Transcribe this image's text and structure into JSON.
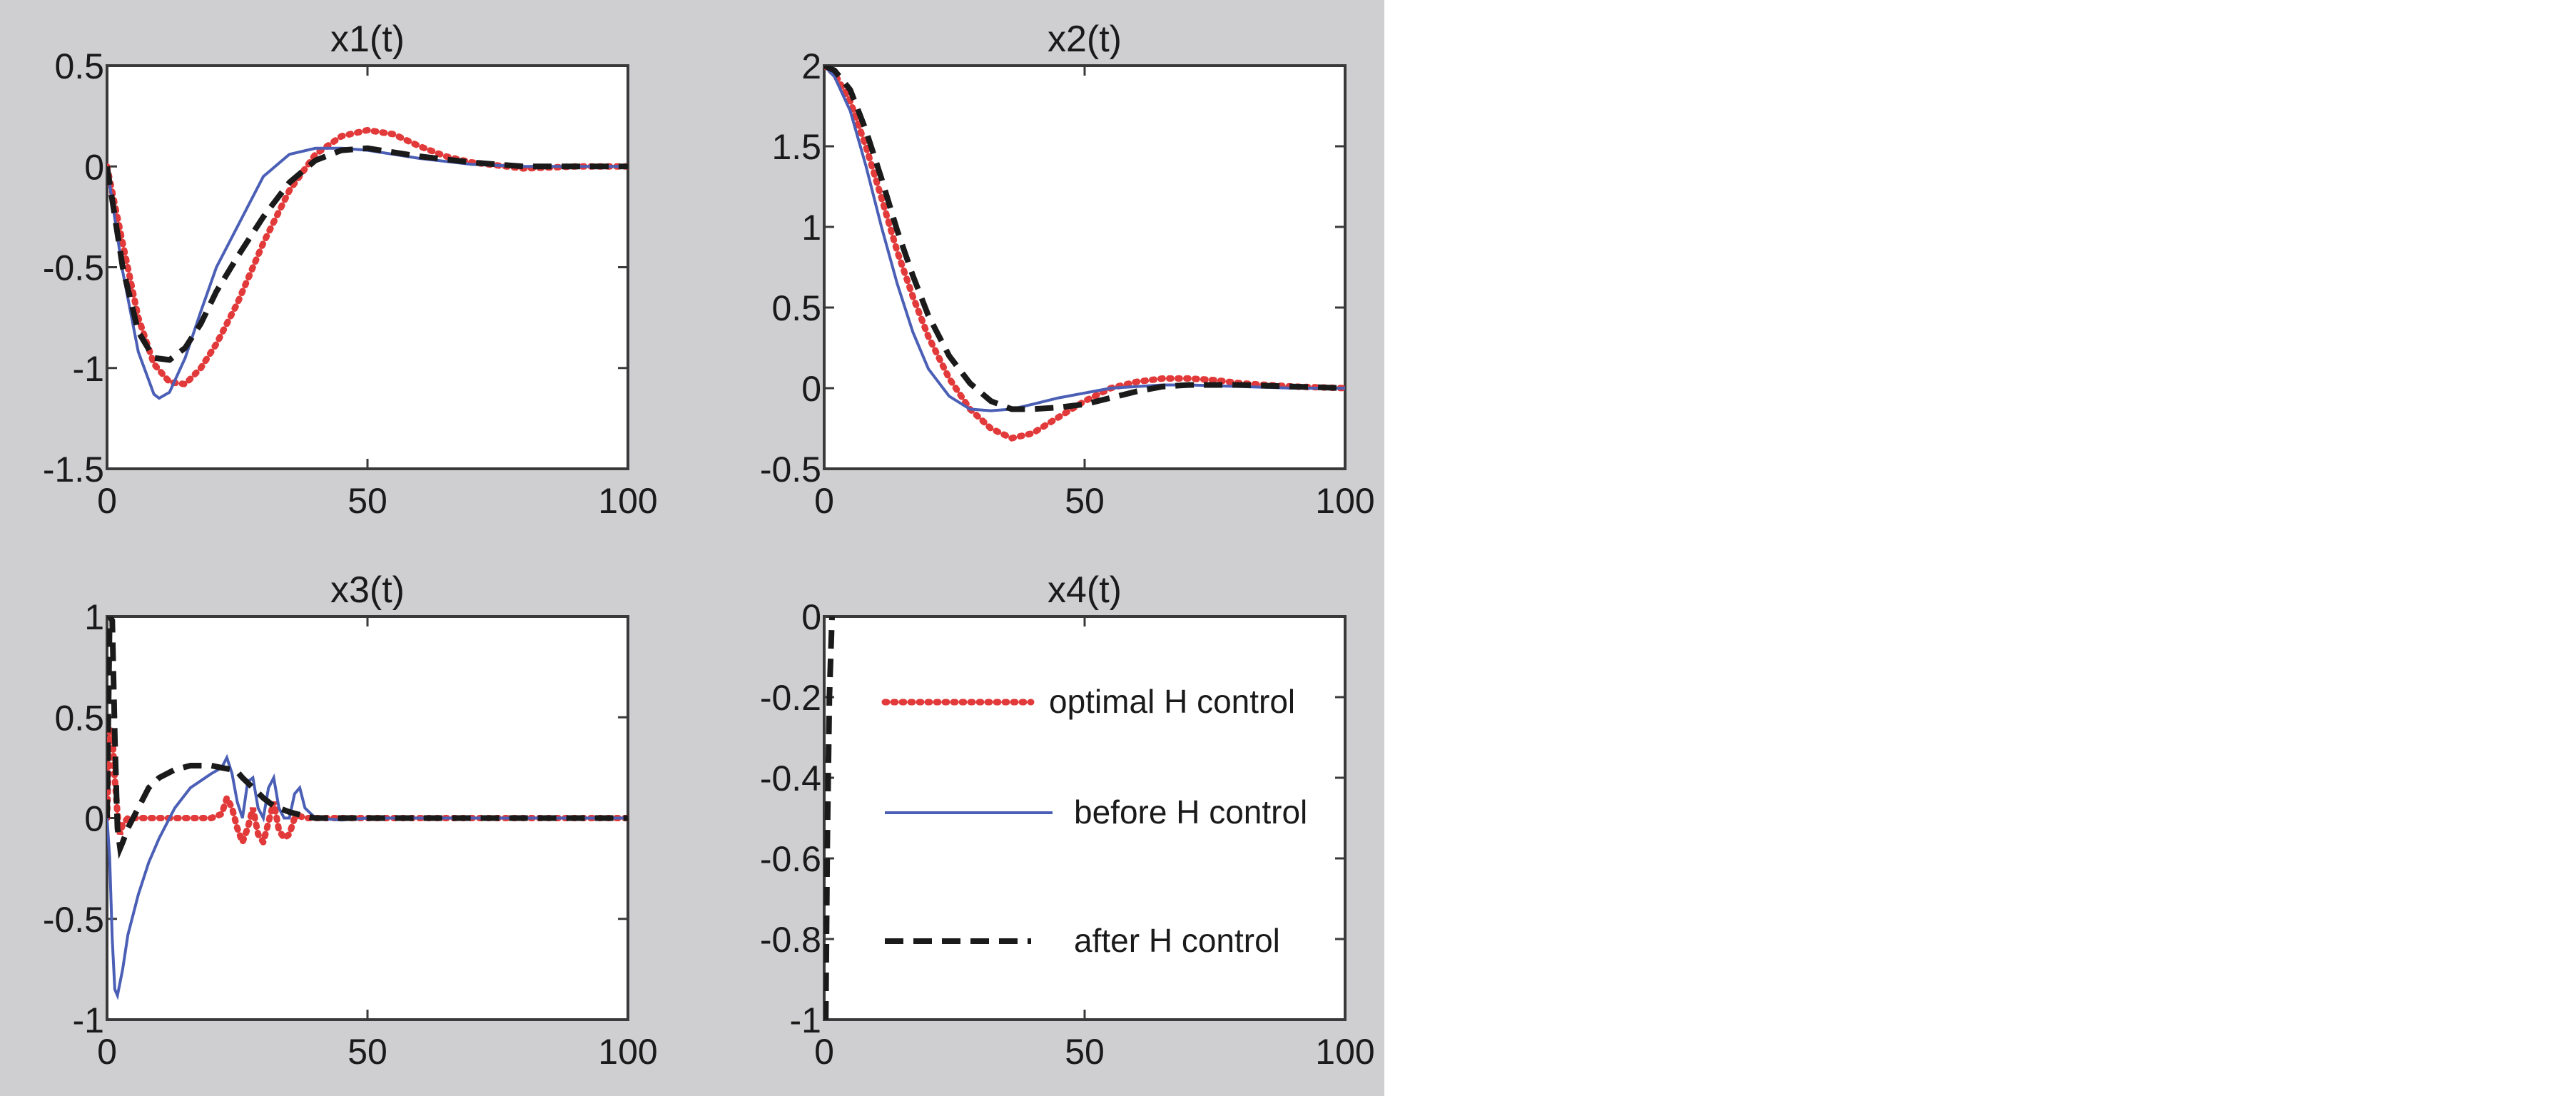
{
  "colors": {
    "background": "#cfcfd1",
    "optimal": "#e23a3a",
    "before": "#4a5fb5",
    "after": "#1a1a1a"
  },
  "legend": [
    {
      "key": "optimal",
      "label": "optimal H control"
    },
    {
      "key": "before",
      "label": "before H control"
    },
    {
      "key": "after",
      "label": "after H control"
    }
  ],
  "chart_data": [
    {
      "type": "line",
      "title": "x1(t)",
      "xlim": [
        0,
        100
      ],
      "ylim": [
        -1.5,
        0.5
      ],
      "xticks": [
        "0",
        "50",
        "100"
      ],
      "yticks": [
        "0.5",
        "0",
        "-0.5",
        "-1",
        "-1.5"
      ],
      "series": [
        {
          "key": "optimal",
          "x": [
            0,
            3,
            6,
            9,
            12,
            15,
            18,
            21,
            25,
            30,
            35,
            40,
            45,
            50,
            55,
            60,
            65,
            70,
            80,
            90,
            100
          ],
          "y": [
            0,
            -0.38,
            -0.75,
            -0.98,
            -1.07,
            -1.08,
            -1.0,
            -0.88,
            -0.68,
            -0.38,
            -0.12,
            0.06,
            0.15,
            0.18,
            0.16,
            0.1,
            0.05,
            0.02,
            -0.01,
            0.0,
            0.0
          ]
        },
        {
          "key": "before",
          "x": [
            0,
            3,
            6,
            9,
            10,
            12,
            15,
            18,
            21,
            25,
            30,
            35,
            40,
            45,
            50,
            55,
            60,
            70,
            80,
            90,
            100
          ],
          "y": [
            0,
            -0.52,
            -0.92,
            -1.13,
            -1.15,
            -1.12,
            -0.95,
            -0.72,
            -0.5,
            -0.3,
            -0.05,
            0.06,
            0.09,
            0.09,
            0.08,
            0.06,
            0.04,
            0.01,
            0.0,
            0.0,
            0.0
          ]
        },
        {
          "key": "after",
          "x": [
            0,
            3,
            6,
            9,
            12,
            15,
            18,
            21,
            25,
            30,
            35,
            40,
            45,
            50,
            55,
            60,
            70,
            80,
            90,
            100
          ],
          "y": [
            0,
            -0.5,
            -0.82,
            -0.95,
            -0.96,
            -0.9,
            -0.78,
            -0.62,
            -0.45,
            -0.25,
            -0.08,
            0.03,
            0.08,
            0.09,
            0.07,
            0.05,
            0.02,
            0.0,
            0.0,
            0.0
          ]
        }
      ]
    },
    {
      "type": "line",
      "title": "x2(t)",
      "xlim": [
        0,
        100
      ],
      "ylim": [
        -0.5,
        2
      ],
      "xticks": [
        "0",
        "50",
        "100"
      ],
      "yticks": [
        "2",
        "1.5",
        "1",
        "0.5",
        "0",
        "-0.5"
      ],
      "series": [
        {
          "key": "optimal",
          "x": [
            0,
            2,
            5,
            8,
            11,
            14,
            17,
            20,
            24,
            28,
            32,
            36,
            40,
            45,
            50,
            55,
            60,
            65,
            70,
            75,
            80,
            90,
            100
          ],
          "y": [
            2,
            1.95,
            1.78,
            1.5,
            1.18,
            0.85,
            0.57,
            0.32,
            0.06,
            -0.13,
            -0.25,
            -0.31,
            -0.28,
            -0.18,
            -0.08,
            0.0,
            0.04,
            0.06,
            0.06,
            0.05,
            0.03,
            0.01,
            0.0
          ]
        },
        {
          "key": "before",
          "x": [
            0,
            2,
            5,
            8,
            11,
            14,
            17,
            20,
            24,
            28,
            32,
            36,
            40,
            45,
            50,
            55,
            60,
            65,
            70,
            80,
            90,
            100
          ],
          "y": [
            2,
            1.93,
            1.72,
            1.38,
            1.0,
            0.65,
            0.35,
            0.12,
            -0.05,
            -0.13,
            -0.14,
            -0.13,
            -0.1,
            -0.06,
            -0.03,
            0.0,
            0.01,
            0.02,
            0.02,
            0.01,
            0.0,
            0.0
          ]
        },
        {
          "key": "after",
          "x": [
            0,
            2,
            5,
            8,
            11,
            14,
            17,
            20,
            24,
            28,
            32,
            36,
            40,
            45,
            50,
            55,
            60,
            65,
            70,
            80,
            90,
            100
          ],
          "y": [
            2,
            1.97,
            1.85,
            1.6,
            1.3,
            0.98,
            0.7,
            0.45,
            0.2,
            0.03,
            -0.08,
            -0.13,
            -0.13,
            -0.12,
            -0.1,
            -0.06,
            -0.02,
            0.01,
            0.02,
            0.02,
            0.01,
            0.0
          ]
        }
      ]
    },
    {
      "type": "line",
      "title": "x3(t)",
      "xlim": [
        0,
        100
      ],
      "ylim": [
        -1,
        1
      ],
      "xticks": [
        "0",
        "50",
        "100"
      ],
      "yticks": [
        "1",
        "0.5",
        "0",
        "-0.5",
        "-1"
      ],
      "series": [
        {
          "key": "optimal",
          "x": [
            0,
            0.5,
            1,
            1.5,
            2,
            2.5,
            3,
            4,
            6,
            10,
            15,
            20,
            22,
            23,
            24,
            25,
            26,
            27,
            28,
            29,
            30,
            31,
            32,
            33,
            34,
            35,
            36,
            37,
            38,
            40,
            50,
            70,
            100
          ],
          "y": [
            0,
            0.45,
            0.42,
            0.2,
            0.02,
            -0.08,
            -0.03,
            0,
            0,
            0,
            0,
            0,
            0.02,
            0.1,
            0.05,
            -0.05,
            -0.12,
            -0.05,
            0.05,
            -0.08,
            -0.12,
            -0.02,
            0.08,
            -0.06,
            -0.1,
            -0.08,
            0.0,
            0.01,
            0.0,
            0.0,
            0.0,
            0.0,
            0.0
          ]
        },
        {
          "key": "before",
          "x": [
            0,
            0.5,
            1,
            1.5,
            2,
            3,
            4,
            6,
            8,
            10,
            13,
            16,
            20,
            22,
            23,
            24,
            25,
            26,
            27,
            28,
            29,
            30,
            31,
            32,
            33,
            34,
            35,
            36,
            37,
            38,
            40,
            45,
            50,
            60,
            70,
            80,
            100
          ],
          "y": [
            0,
            -0.2,
            -0.6,
            -0.85,
            -0.88,
            -0.75,
            -0.58,
            -0.38,
            -0.22,
            -0.1,
            0.05,
            0.15,
            0.22,
            0.25,
            0.3,
            0.22,
            0.08,
            0.0,
            0.18,
            0.2,
            0.05,
            0.0,
            0.15,
            0.2,
            0.05,
            0.0,
            0.0,
            0.12,
            0.15,
            0.05,
            0.0,
            -0.01,
            0.0,
            0.0,
            0.0,
            0.0,
            0.0
          ]
        },
        {
          "key": "after",
          "x": [
            0,
            0.5,
            1,
            1.5,
            2,
            2.5,
            3,
            4,
            6,
            8,
            10,
            13,
            16,
            20,
            22,
            24,
            25,
            26,
            28,
            30,
            32,
            35,
            38,
            40,
            45,
            50,
            60,
            100
          ],
          "y": [
            0,
            1.0,
            0.98,
            0.4,
            -0.05,
            -0.15,
            -0.12,
            -0.05,
            0.05,
            0.15,
            0.2,
            0.24,
            0.26,
            0.26,
            0.25,
            0.24,
            0.23,
            0.2,
            0.15,
            0.1,
            0.06,
            0.03,
            0.01,
            0.0,
            0.0,
            0.0,
            0.0,
            0.0
          ]
        }
      ]
    },
    {
      "type": "line",
      "title": "x4(t)",
      "xlim": [
        0,
        100
      ],
      "ylim": [
        -1,
        0
      ],
      "xticks": [
        "0",
        "50",
        "100"
      ],
      "yticks": [
        "0",
        "-0.2",
        "-0.4",
        "-0.6",
        "-0.8",
        "-1"
      ],
      "series": [
        {
          "key": "after",
          "x": [
            0.3,
            0.6,
            1.0,
            1.5
          ],
          "y": [
            -1,
            -0.55,
            -0.2,
            0
          ]
        }
      ]
    }
  ]
}
